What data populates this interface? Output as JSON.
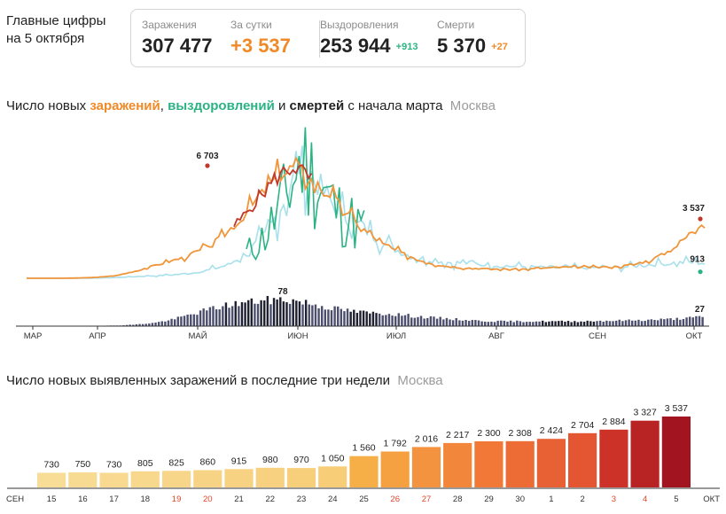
{
  "header": {
    "title_line1": "Главные цифры",
    "title_line2": "на 5 октября"
  },
  "stats": {
    "infections": {
      "label": "Заражения",
      "value": "307 477"
    },
    "per_day": {
      "label": "За сутки",
      "value": "+3 537"
    },
    "recovered": {
      "label": "Выздоровления",
      "value": "253 944",
      "delta": "+913"
    },
    "deaths": {
      "label": "Смерти",
      "value": "5 370",
      "delta": "+27"
    }
  },
  "chart1": {
    "title_prefix": "Число новых ",
    "title_infections": "заражений",
    "title_comma": ", ",
    "title_recoveries": "выздоровлений",
    "title_and": " и ",
    "title_deaths": "смертей",
    "title_suffix": " с начала марта",
    "title_city": "Москва"
  },
  "chart2": {
    "title": "Число новых выявленных заражений в последние три недели",
    "title_city": "Москва"
  },
  "colors": {
    "infections": "#f0953a",
    "infections_peak": "#c0392b",
    "recoveries": "#2bb383",
    "recoveries_light": "#a8e0ec",
    "deaths": "#4b4e6d",
    "deaths_dark": "#1e2030"
  },
  "chart_data": [
    {
      "type": "line",
      "title": "Число новых заражений, выздоровлений и смертей с начала марта",
      "x_axis_ticks": [
        "МАР",
        "АПР",
        "МАЙ",
        "ИЮН",
        "ИЮЛ",
        "АВГ",
        "СЕН",
        "ОКТ"
      ],
      "ylim": [
        0,
        7500
      ],
      "series": [
        {
          "name": "заражений",
          "anchor_values": [
            0,
            0,
            0,
            20,
            60,
            150,
            400,
            700,
            1000,
            1300,
            1800,
            2500,
            3500,
            4800,
            6000,
            6703,
            5800,
            5000,
            3800,
            2800,
            2000,
            1500,
            1100,
            800,
            650,
            600,
            550,
            550,
            550,
            600,
            650,
            650,
            650,
            700,
            800,
            1100,
            1600,
            2500,
            3537
          ],
          "annotations": [
            {
              "label": "6 703",
              "value": 6703,
              "date": "2020-05-07"
            },
            {
              "label": "3 537",
              "value": 3537,
              "date": "2020-10-05"
            }
          ]
        },
        {
          "name": "выздоровлений",
          "anchor_values": [
            0,
            0,
            0,
            0,
            20,
            50,
            100,
            150,
            200,
            300,
            500,
            800,
            1500,
            2500,
            4500,
            7000,
            5500,
            4000,
            3200,
            2500,
            1800,
            1300,
            1100,
            950,
            900,
            850,
            750,
            700,
            650,
            650,
            620,
            620,
            650,
            700,
            800,
            900,
            950,
            913
          ],
          "annotations": [
            {
              "label": "913",
              "value": 913,
              "date": "2020-10-05"
            }
          ]
        },
        {
          "name": "смертей",
          "anchor_values": [
            0,
            0,
            0,
            0,
            1,
            2,
            5,
            10,
            20,
            35,
            50,
            62,
            70,
            75,
            78,
            72,
            60,
            50,
            42,
            38,
            36,
            30,
            25,
            22,
            18,
            15,
            14,
            14,
            14,
            14,
            14,
            15,
            16,
            17,
            18,
            20,
            23,
            27
          ],
          "annotations": [
            {
              "label": "78",
              "value": 78,
              "date": "2020-06-05"
            },
            {
              "label": "27",
              "value": 27,
              "date": "2020-10-05"
            }
          ]
        }
      ]
    },
    {
      "type": "bar",
      "title": "Число новых выявленных заражений в последние три недели",
      "categories": [
        "15",
        "16",
        "17",
        "18",
        "19",
        "20",
        "21",
        "22",
        "23",
        "24",
        "25",
        "26",
        "27",
        "28",
        "29",
        "30",
        "1",
        "2",
        "3",
        "4",
        "5"
      ],
      "weekend_categories": [
        "19",
        "20",
        "26",
        "27",
        "3",
        "4"
      ],
      "values": [
        730,
        750,
        730,
        805,
        825,
        860,
        915,
        980,
        970,
        1050,
        1560,
        1792,
        2016,
        2217,
        2300,
        2308,
        2424,
        2704,
        2884,
        3327,
        3537
      ],
      "value_labels": [
        "730",
        "750",
        "730",
        "805",
        "825",
        "860",
        "915",
        "980",
        "970",
        "1 050",
        "1 560",
        "1 792",
        "2 016",
        "2 217",
        "2 300",
        "2 308",
        "2 424",
        "2 704",
        "2 884",
        "3 327",
        "3 537"
      ],
      "axis_edge_labels": [
        "СЕН",
        "ОКТ"
      ],
      "ylim": [
        0,
        3600
      ]
    }
  ]
}
